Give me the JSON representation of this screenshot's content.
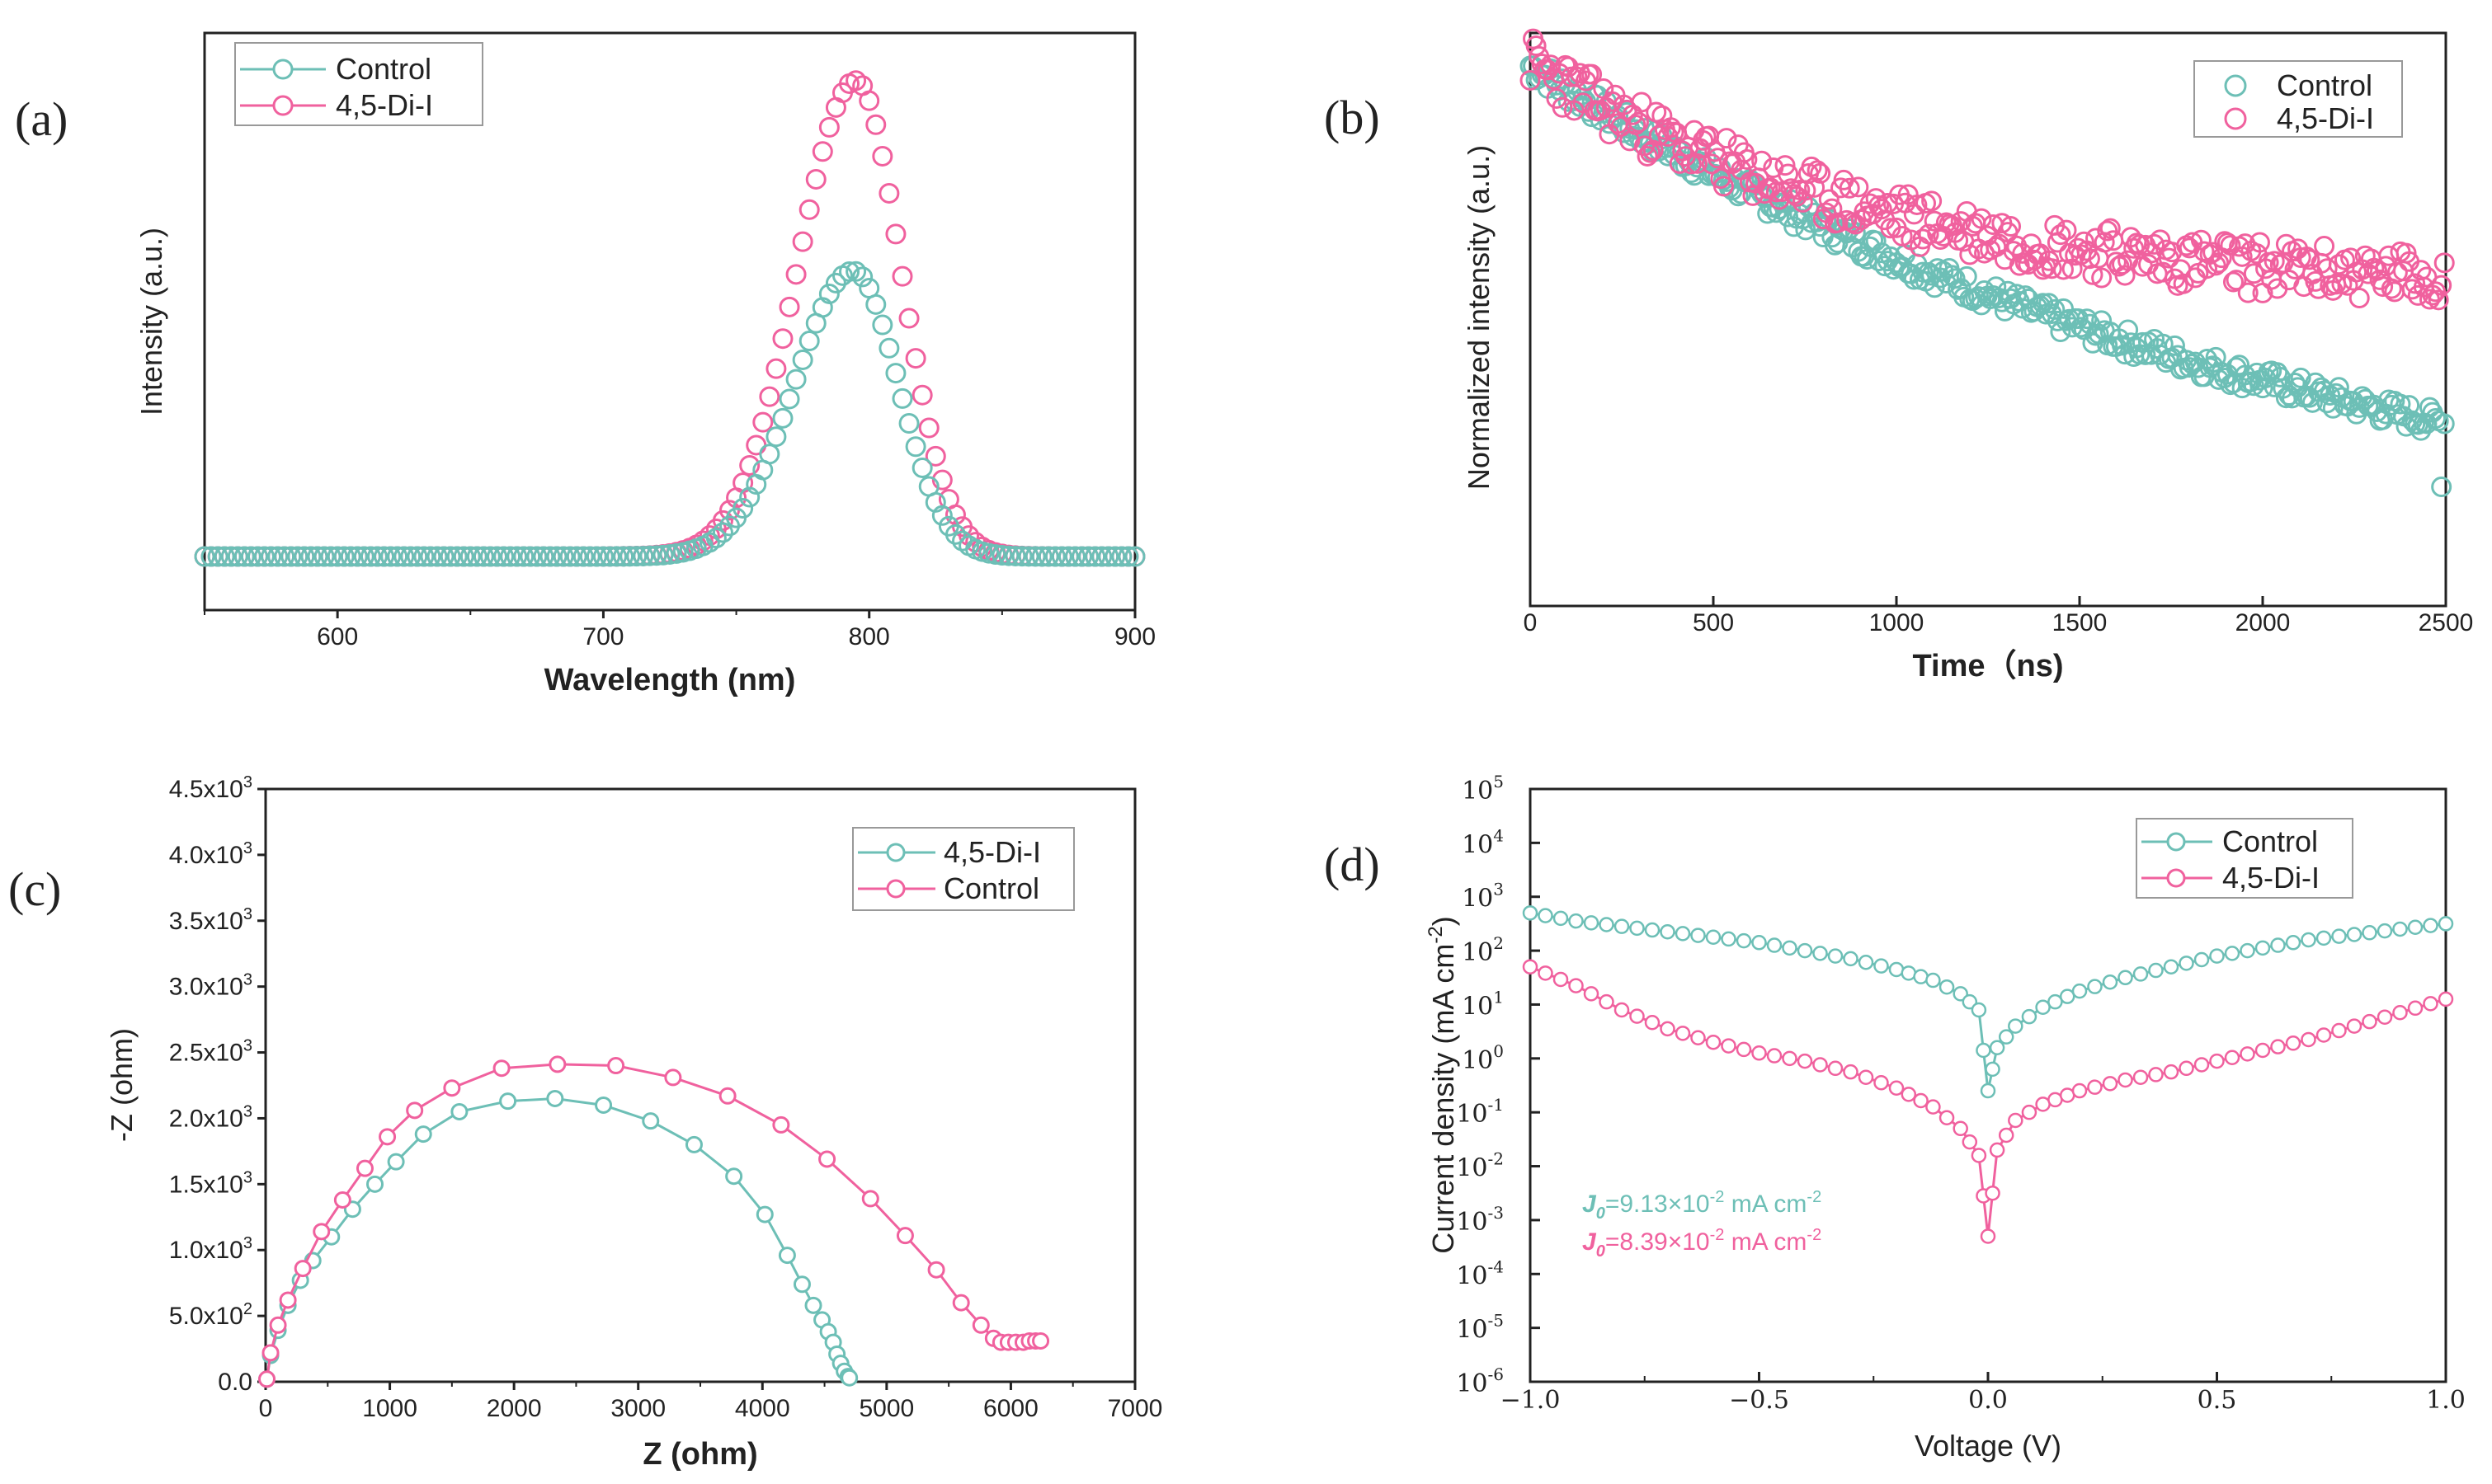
{
  "colors": {
    "control": "#6dbfb6",
    "didi": "#f0619e",
    "axis": "#222222"
  },
  "chart_data": [
    {
      "panel": "(a)",
      "type": "scatter",
      "xlabel": "Wavelength (nm)",
      "ylabel": "Intensity (a.u.)",
      "xlim": [
        550,
        900
      ],
      "ylim": [
        0,
        1.1
      ],
      "xticks": [
        "600",
        "700",
        "800",
        "900"
      ],
      "legend": [
        "Control",
        "4,5-Di-I"
      ],
      "legend_position": "top-left",
      "series": [
        {
          "name": "Control",
          "peak_x": 794,
          "peak_y": 0.6,
          "baseline": 0.0,
          "sigma_left": 22,
          "sigma_right": 17
        },
        {
          "name": "4,5-Di-I",
          "peak_x": 795,
          "peak_y": 1.0,
          "baseline": 0.0,
          "sigma_left": 22,
          "sigma_right": 17
        }
      ]
    },
    {
      "panel": "(b)",
      "type": "scatter",
      "xlabel": "Time（ns)",
      "ylabel": "Normalized intensity (a.u.)",
      "xlim": [
        0,
        2500
      ],
      "xticks": [
        "0",
        "500",
        "1000",
        "1500",
        "2000",
        "2500"
      ],
      "legend": [
        "Control",
        "4,5-Di-I"
      ],
      "legend_position": "top-right",
      "series": [
        {
          "name": "Control",
          "start": 0.97,
          "decay_per_ns": 0.00046,
          "floor_levels": [
            0.27,
            0.19,
            0.12
          ]
        },
        {
          "name": "4,5-Di-I",
          "start": 0.98,
          "end_mean": 0.55,
          "spread": 0.05
        }
      ]
    },
    {
      "panel": "(c)",
      "type": "scatter",
      "xlabel": "Z (ohm)",
      "ylabel": "-Z (ohm)",
      "xlim": [
        0,
        7000
      ],
      "ylim": [
        0,
        4500
      ],
      "xticks": [
        "0",
        "1000",
        "2000",
        "3000",
        "4000",
        "5000",
        "6000",
        "7000"
      ],
      "yticks": [
        "0.0",
        "5.0x10",
        "1.0x10",
        "1.5x10",
        "2.0x10",
        "2.5x10",
        "3.0x10",
        "3.5x10",
        "4.0x10",
        "4.5x10"
      ],
      "ytick_exponents": [
        "",
        "2",
        "3",
        "3",
        "3",
        "3",
        "3",
        "3",
        "3",
        "3"
      ],
      "legend": [
        "4,5-Di-I",
        "Control"
      ],
      "legend_position": "top-right",
      "series": [
        {
          "name": "4,5-Di-I",
          "x": [
            10,
            40,
            100,
            180,
            280,
            380,
            530,
            700,
            880,
            1050,
            1270,
            1560,
            1950,
            2330,
            2720,
            3100,
            3450,
            3770,
            4020,
            4200,
            4320,
            4410,
            4480,
            4530,
            4570,
            4600,
            4630,
            4660,
            4690,
            4700
          ],
          "y": [
            20,
            200,
            390,
            580,
            770,
            920,
            1100,
            1310,
            1500,
            1670,
            1880,
            2050,
            2130,
            2150,
            2100,
            1980,
            1800,
            1560,
            1270,
            960,
            740,
            580,
            470,
            380,
            300,
            210,
            140,
            80,
            40,
            30
          ]
        },
        {
          "name": "Control",
          "x": [
            10,
            40,
            100,
            180,
            300,
            450,
            620,
            800,
            980,
            1200,
            1500,
            1900,
            2350,
            2820,
            3280,
            3720,
            4150,
            4520,
            4870,
            5150,
            5400,
            5600,
            5760,
            5860,
            5920,
            5980,
            6040,
            6100,
            6150,
            6200,
            6240
          ],
          "y": [
            20,
            220,
            430,
            620,
            860,
            1140,
            1380,
            1620,
            1860,
            2060,
            2230,
            2380,
            2410,
            2400,
            2310,
            2170,
            1950,
            1690,
            1390,
            1110,
            850,
            600,
            430,
            330,
            300,
            300,
            300,
            300,
            310,
            310,
            310
          ]
        }
      ]
    },
    {
      "panel": "(d)",
      "type": "line",
      "scale_y": "log",
      "xlabel": "Voltage (V)",
      "ylabel": "Current density (mA cm",
      "ylabel_sup": "-2",
      "xlim": [
        -1.0,
        1.0
      ],
      "ylim_log10": [
        -6,
        5
      ],
      "xticks": [
        "−1.0",
        "−0.5",
        "0.0",
        "0.5",
        "1.0"
      ],
      "yticks_exp": [
        "5",
        "4",
        "3",
        "2",
        "1",
        "0",
        "-1",
        "-2",
        "-3",
        "-4",
        "-5",
        "-6"
      ],
      "ytick_base": "10",
      "legend": [
        "Control",
        "4,5-Di-I"
      ],
      "legend_position": "top-right",
      "annotations": [
        {
          "label": "J",
          "sub": "0",
          "text": "=9.13×10",
          "exp": "-2",
          "unit": " mA cm",
          "unit_exp": "-2",
          "series": "Control"
        },
        {
          "label": "J",
          "sub": "0",
          "text": "=8.39×10",
          "exp": "-2",
          "unit": " mA cm",
          "unit_exp": "-2",
          "series": "4,5-Di-I"
        }
      ],
      "series": [
        {
          "name": "Control",
          "x": [
            -1.0,
            -0.9,
            -0.8,
            -0.7,
            -0.6,
            -0.5,
            -0.4,
            -0.3,
            -0.2,
            -0.12,
            -0.06,
            -0.02,
            0.0,
            0.02,
            0.06,
            0.12,
            0.2,
            0.3,
            0.4,
            0.5,
            0.6,
            0.7,
            0.8,
            0.9,
            1.0
          ],
          "log10y": [
            2.7,
            2.55,
            2.45,
            2.35,
            2.25,
            2.15,
            2.0,
            1.85,
            1.65,
            1.45,
            1.2,
            0.9,
            -0.6,
            0.2,
            0.6,
            0.95,
            1.25,
            1.5,
            1.7,
            1.9,
            2.05,
            2.2,
            2.3,
            2.4,
            2.5
          ]
        },
        {
          "name": "4,5-Di-I",
          "x": [
            -1.0,
            -0.9,
            -0.8,
            -0.7,
            -0.6,
            -0.5,
            -0.4,
            -0.3,
            -0.2,
            -0.12,
            -0.06,
            -0.02,
            0.0,
            0.02,
            0.06,
            0.12,
            0.2,
            0.3,
            0.4,
            0.5,
            0.6,
            0.7,
            0.8,
            0.9,
            1.0
          ],
          "log10y": [
            1.7,
            1.35,
            0.9,
            0.55,
            0.3,
            0.1,
            -0.05,
            -0.25,
            -0.55,
            -0.9,
            -1.3,
            -1.8,
            -3.3,
            -1.7,
            -1.15,
            -0.85,
            -0.6,
            -0.4,
            -0.25,
            -0.05,
            0.15,
            0.35,
            0.6,
            0.85,
            1.1
          ]
        }
      ]
    }
  ]
}
